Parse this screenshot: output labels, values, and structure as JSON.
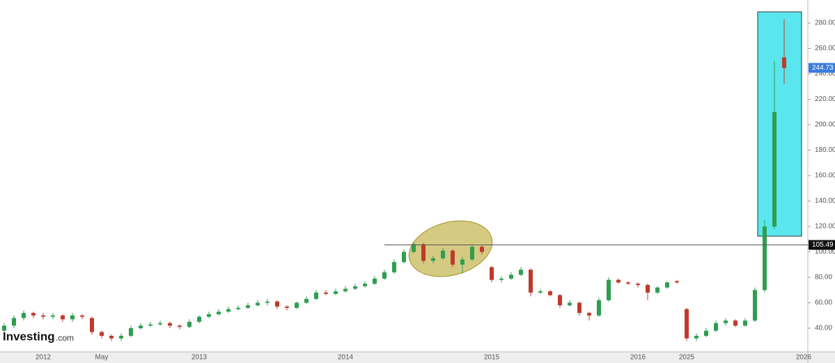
{
  "chart_data": {
    "type": "candlestick",
    "logo": {
      "brand": "Investing",
      "suffix": ".com"
    },
    "categories": [
      null,
      null,
      null,
      null,
      "2012",
      null,
      null,
      null,
      null,
      null,
      "May",
      null,
      null,
      null,
      null,
      null,
      null,
      null,
      null,
      null,
      "2013",
      null,
      null,
      null,
      null,
      null,
      null,
      null,
      null,
      null,
      null,
      null,
      null,
      null,
      null,
      "2014",
      null,
      null,
      null,
      null,
      null,
      null,
      null,
      null,
      null,
      null,
      null,
      null,
      null,
      null,
      "2015",
      null,
      null,
      null,
      null,
      null,
      null,
      null,
      null,
      null,
      null,
      null,
      null,
      null,
      null,
      "2016",
      null,
      null,
      null,
      null,
      "2025",
      null,
      null,
      null,
      null,
      null,
      null,
      null,
      null,
      null,
      null,
      null,
      "2026"
    ],
    "candles": {
      "open": [
        38,
        42,
        48,
        52,
        50,
        49,
        50,
        47,
        50,
        48,
        37,
        34,
        32,
        34,
        40,
        42,
        43,
        44,
        42,
        41,
        45,
        49,
        51,
        53,
        55,
        56,
        58,
        60,
        61,
        57,
        56,
        60,
        63,
        68,
        67,
        69,
        71,
        73,
        75,
        79,
        84,
        92,
        100,
        106,
        93,
        95,
        101,
        90,
        94,
        104,
        88,
        78,
        79,
        82,
        86,
        68,
        69,
        66,
        58,
        60,
        52,
        50,
        62,
        78,
        76,
        75,
        74,
        68,
        72,
        77,
        55,
        32,
        34,
        38,
        44,
        46,
        42,
        46,
        70,
        120,
        253,
        null,
        null
      ],
      "high": [
        44,
        50,
        54,
        53,
        52,
        52,
        51,
        52,
        51,
        49,
        38,
        35,
        36,
        42,
        44,
        45,
        46,
        45,
        43,
        47,
        50,
        53,
        55,
        57,
        58,
        60,
        62,
        63,
        62,
        58,
        61,
        65,
        70,
        70,
        71,
        73,
        75,
        77,
        81,
        86,
        94,
        102,
        108,
        107,
        97,
        103,
        102,
        96,
        106,
        105,
        89,
        81,
        84,
        88,
        87,
        71,
        70,
        67,
        62,
        61,
        53,
        64,
        80,
        79,
        77,
        76,
        75,
        73,
        77,
        78,
        56,
        36,
        40,
        46,
        48,
        47,
        48,
        72,
        125,
        250,
        283,
        null,
        null
      ],
      "low": [
        37,
        40,
        46,
        48,
        47,
        47,
        45,
        45,
        47,
        35,
        32,
        30,
        30,
        33,
        39,
        41,
        42,
        40,
        39,
        40,
        44,
        48,
        50,
        52,
        54,
        55,
        57,
        58,
        55,
        54,
        55,
        59,
        62,
        66,
        66,
        68,
        70,
        72,
        74,
        78,
        83,
        91,
        99,
        91,
        91,
        94,
        88,
        83,
        93,
        98,
        76,
        76,
        78,
        81,
        65,
        67,
        65,
        56,
        57,
        50,
        46,
        49,
        61,
        75,
        74,
        72,
        62,
        67,
        71,
        75,
        30,
        30,
        33,
        37,
        42,
        41,
        41,
        45,
        68,
        118,
        232,
        null,
        null
      ],
      "close": [
        42,
        48,
        52,
        50,
        49,
        50,
        47,
        50,
        49,
        37,
        34,
        32,
        34,
        40,
        42,
        43,
        44,
        42,
        41,
        45,
        49,
        51,
        53,
        55,
        56,
        58,
        60,
        61,
        57,
        56,
        60,
        63,
        68,
        67,
        69,
        71,
        73,
        75,
        79,
        84,
        92,
        100,
        106,
        93,
        95,
        101,
        90,
        94,
        104,
        100,
        78,
        79,
        82,
        86,
        68,
        69,
        66,
        58,
        60,
        52,
        50,
        62,
        78,
        76,
        75,
        74,
        68,
        72,
        76,
        76,
        32,
        34,
        38,
        44,
        46,
        42,
        46,
        70,
        120,
        210,
        244.73,
        null,
        null
      ]
    },
    "up_color": "#2e9e4f",
    "down_color": "#c0392b",
    "hline": {
      "value": 105.49
    },
    "ylim": [
      21.4,
      298.1
    ],
    "yticks": [
      {
        "value": 40,
        "label": "40.00"
      },
      {
        "value": 60,
        "label": "60.00"
      },
      {
        "value": 80,
        "label": "80.00"
      },
      {
        "value": 100,
        "label": "100.00"
      },
      {
        "value": 120,
        "label": "120.00"
      },
      {
        "value": 140,
        "label": "140.00"
      },
      {
        "value": 160,
        "label": "160.00"
      },
      {
        "value": 180,
        "label": "180.00"
      },
      {
        "value": 200,
        "label": "200.00"
      },
      {
        "value": 220,
        "label": "220.00"
      },
      {
        "value": 240,
        "label": "240.00"
      },
      {
        "value": 260,
        "label": "260.00"
      },
      {
        "value": 280,
        "label": "280.00"
      }
    ]
  }
}
